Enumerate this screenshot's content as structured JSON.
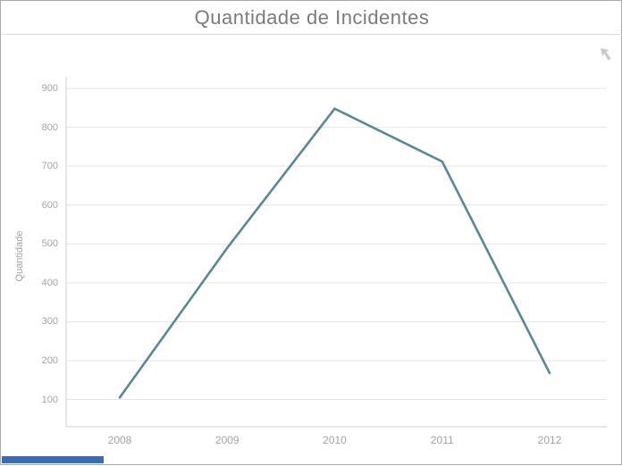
{
  "header": {
    "title": "Quantidade de Incidentes"
  },
  "icons": {
    "focus_mode_arrow": "back-arrow-up-left"
  },
  "chart_data": {
    "type": "line",
    "title": "Quantidade de Incidentes",
    "xlabel": "",
    "ylabel": "Quantidade",
    "categories": [
      "2008",
      "2009",
      "2010",
      "2011",
      "2012"
    ],
    "series": [
      {
        "name": "Quantidade",
        "values": [
          105,
          490,
          848,
          712,
          168
        ]
      }
    ],
    "yticks": [
      100,
      200,
      300,
      400,
      500,
      600,
      700,
      800,
      900
    ],
    "ylim": [
      30,
      930
    ],
    "grid": "horizontal",
    "legend_position": "none",
    "line_color": "#5b8794",
    "gridline_color": "#e4e4e4",
    "axis_line_color": "#cfcfcf",
    "tick_color": "#a2a2a2"
  },
  "scrollbar": {
    "color": "#3a6cb4"
  }
}
